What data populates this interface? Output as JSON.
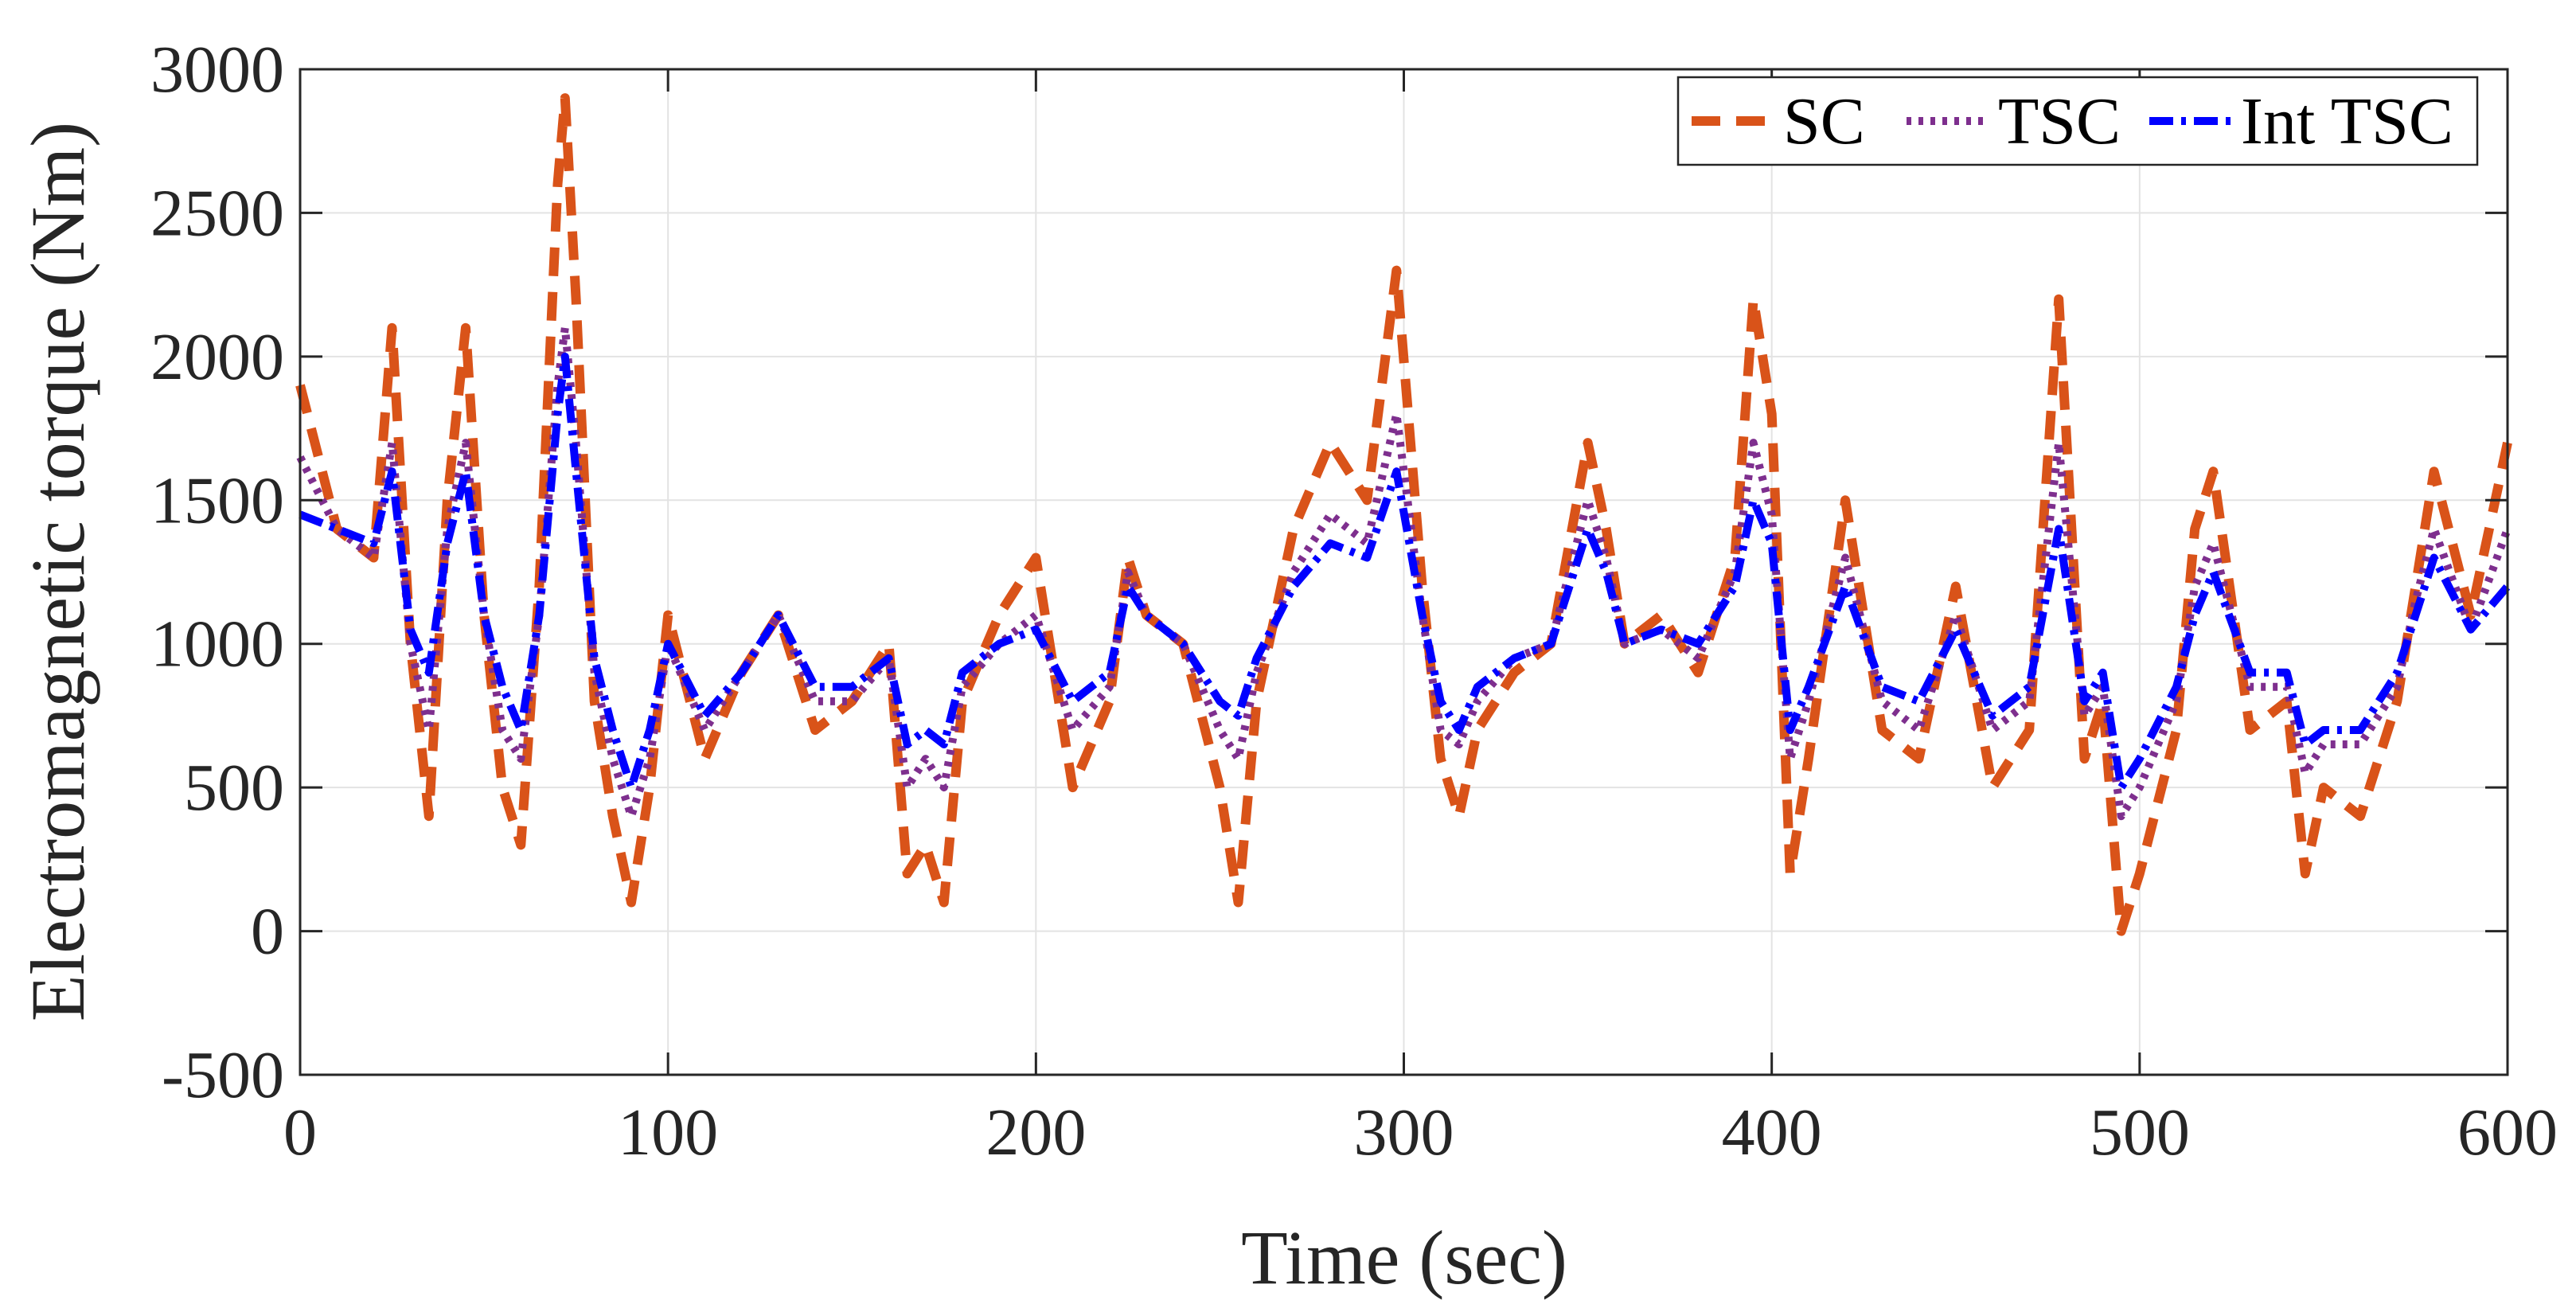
{
  "chart_data": {
    "type": "line",
    "title": "",
    "xlabel": "Time (sec)",
    "ylabel": "Electromagnetic torque (Nm)",
    "xlim": [
      0,
      600
    ],
    "ylim": [
      -500,
      3000
    ],
    "xticks": [
      0,
      100,
      200,
      300,
      400,
      500,
      600
    ],
    "yticks": [
      -500,
      0,
      500,
      1000,
      1500,
      2000,
      2500,
      3000
    ],
    "xtick_labels": [
      "0",
      "100",
      "200",
      "300",
      "400",
      "500",
      "600"
    ],
    "ytick_labels": [
      "-500",
      "0",
      "500",
      "1000",
      "1500",
      "2000",
      "2500",
      "3000"
    ],
    "grid": true,
    "legend_position": "top-right",
    "x": [
      0,
      10,
      20,
      25,
      30,
      35,
      40,
      45,
      50,
      55,
      60,
      65,
      70,
      72,
      75,
      80,
      85,
      90,
      95,
      100,
      110,
      120,
      130,
      140,
      150,
      160,
      165,
      170,
      175,
      180,
      190,
      200,
      210,
      220,
      225,
      230,
      240,
      250,
      255,
      260,
      270,
      280,
      290,
      298,
      305,
      310,
      315,
      320,
      330,
      340,
      350,
      355,
      360,
      370,
      380,
      390,
      395,
      400,
      405,
      410,
      420,
      430,
      440,
      450,
      460,
      470,
      478,
      485,
      490,
      495,
      500,
      510,
      515,
      520,
      530,
      540,
      545,
      550,
      560,
      570,
      575,
      580,
      590,
      600
    ],
    "series": [
      {
        "name": "SC",
        "color": "#D95319",
        "style": "dashed",
        "values": [
          1900,
          1400,
          1300,
          2100,
          1000,
          400,
          1500,
          2100,
          1100,
          500,
          300,
          1200,
          2600,
          2900,
          2200,
          800,
          400,
          100,
          500,
          1100,
          600,
          900,
          1100,
          700,
          800,
          1000,
          200,
          300,
          100,
          800,
          1100,
          1300,
          500,
          800,
          1300,
          1100,
          1000,
          500,
          100,
          800,
          1400,
          1700,
          1500,
          2300,
          1200,
          600,
          400,
          700,
          900,
          1000,
          1700,
          1400,
          1000,
          1100,
          900,
          1300,
          2200,
          1800,
          200,
          600,
          1500,
          700,
          600,
          1200,
          500,
          700,
          2200,
          600,
          800,
          0,
          200,
          700,
          1400,
          1600,
          700,
          800,
          200,
          500,
          400,
          800,
          1200,
          1600,
          1100,
          1700
        ]
      },
      {
        "name": "TSC",
        "color": "#7E2F8E",
        "style": "dotted",
        "values": [
          1650,
          1400,
          1300,
          1700,
          1000,
          700,
          1400,
          1700,
          1100,
          700,
          600,
          1100,
          1900,
          2100,
          1700,
          900,
          600,
          400,
          600,
          1000,
          700,
          900,
          1100,
          800,
          800,
          950,
          500,
          600,
          500,
          850,
          1000,
          1100,
          700,
          850,
          1250,
          1100,
          1000,
          700,
          600,
          900,
          1250,
          1450,
          1350,
          1800,
          1100,
          700,
          650,
          800,
          950,
          1000,
          1500,
          1300,
          1000,
          1050,
          950,
          1250,
          1700,
          1450,
          600,
          800,
          1300,
          800,
          700,
          1100,
          700,
          800,
          1700,
          750,
          850,
          400,
          500,
          800,
          1200,
          1350,
          850,
          850,
          550,
          650,
          650,
          850,
          1150,
          1400,
          1050,
          1400
        ]
      },
      {
        "name": "Int TSC",
        "color": "#0000FF",
        "style": "dash-dot",
        "values": [
          1450,
          1400,
          1350,
          1600,
          1050,
          900,
          1350,
          1600,
          1100,
          850,
          700,
          1100,
          1800,
          2000,
          1600,
          950,
          700,
          500,
          700,
          1000,
          750,
          900,
          1100,
          850,
          850,
          950,
          650,
          700,
          650,
          900,
          1000,
          1050,
          800,
          900,
          1200,
          1100,
          1000,
          800,
          750,
          950,
          1200,
          1350,
          1300,
          1600,
          1100,
          800,
          700,
          850,
          950,
          1000,
          1400,
          1250,
          1000,
          1050,
          1000,
          1200,
          1500,
          1350,
          700,
          850,
          1200,
          850,
          800,
          1050,
          750,
          850,
          1400,
          800,
          900,
          500,
          600,
          850,
          1100,
          1250,
          900,
          900,
          650,
          700,
          700,
          900,
          1100,
          1300,
          1050,
          1200
        ]
      }
    ]
  }
}
